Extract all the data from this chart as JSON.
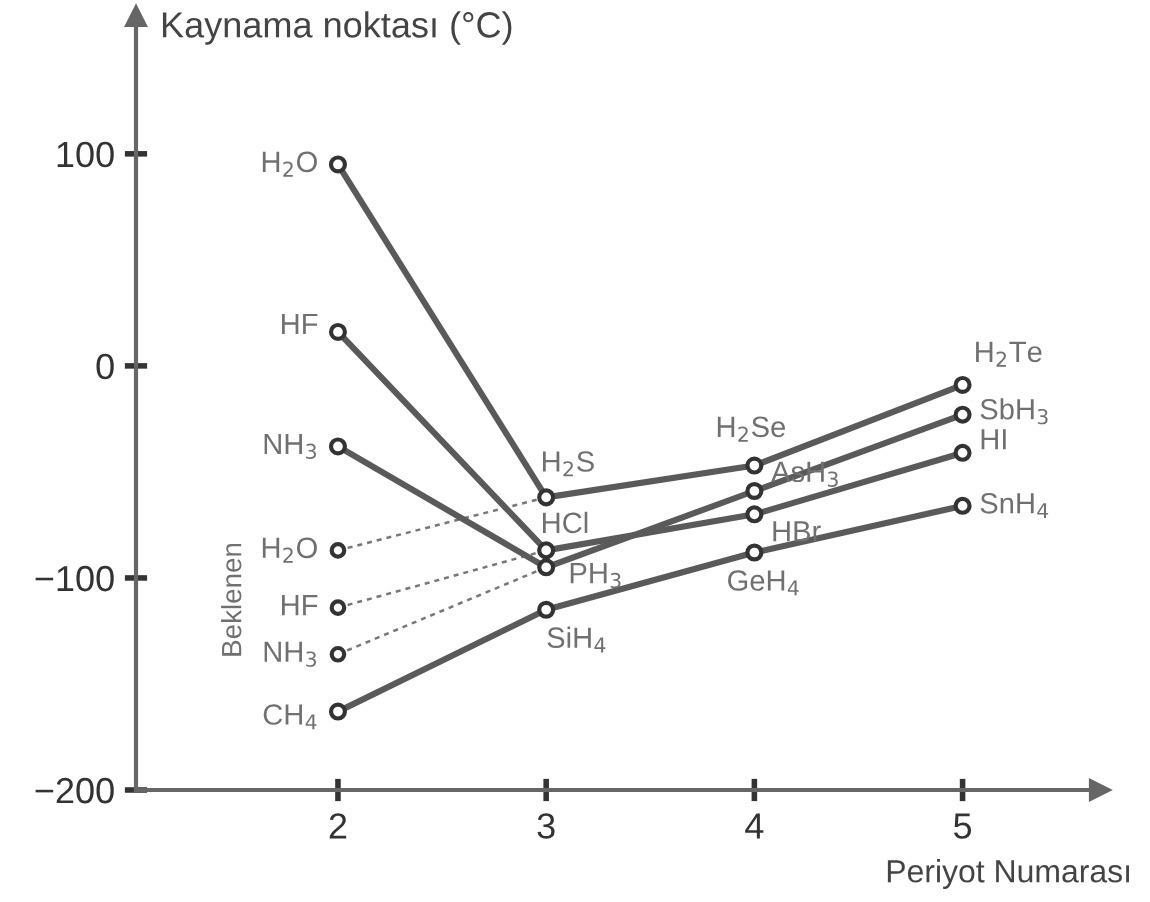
{
  "chart_data": {
    "type": "line",
    "ylabel": "Kaynama noktası (°C)",
    "xlabel": "Periyot Numarası",
    "x": [
      2,
      3,
      4,
      5
    ],
    "xlim": [
      1.03,
      5.66
    ],
    "ylim": [
      -200,
      165
    ],
    "xticks": [
      2,
      3,
      4,
      5
    ],
    "yticks": [
      100,
      0,
      {
        "value": -100,
        "label": "−100"
      },
      {
        "value": -200,
        "label": "−200"
      }
    ],
    "marker": "circle",
    "line_style": "solid",
    "grid": false,
    "legend": false,
    "series": [
      {
        "color": "#5a5a5a",
        "values": [
          95,
          -62,
          -47,
          -9
        ]
      },
      {
        "color": "#5a5a5a",
        "values": [
          16,
          -87,
          -70,
          -41
        ]
      },
      {
        "color": "#5a5a5a",
        "values": [
          -38,
          -95,
          -59,
          -23
        ]
      },
      {
        "color": "#5a5a5a",
        "values": [
          -163,
          -115,
          -88,
          -66
        ]
      },
      {
        "color": "#777777",
        "values": [
          -87,
          -62,
          null,
          null
        ],
        "line_style": "dotted"
      },
      {
        "color": "#777777",
        "values": [
          -114,
          -87,
          null,
          null
        ],
        "line_style": "dotted"
      },
      {
        "color": "#777777",
        "values": [
          -136,
          -95,
          null,
          null
        ],
        "line_style": "dotted"
      }
    ],
    "annotations": [
      {
        "text": "H$_{2}$O",
        "x": 2,
        "y": 95
      },
      {
        "text": "H$_{2}$S",
        "x": 3,
        "y": -62
      },
      {
        "text": "H$_{2}$Se",
        "x": 4,
        "y": -47
      },
      {
        "text": "H$_{2}$Te",
        "x": 5,
        "y": -9
      },
      {
        "text": "HF",
        "x": 2,
        "y": 16
      },
      {
        "text": "HCl",
        "x": 3,
        "y": -87
      },
      {
        "text": "HBr",
        "x": 4,
        "y": -70
      },
      {
        "text": "HI",
        "x": 5,
        "y": -41
      },
      {
        "text": "NH$_{3}$",
        "x": 2,
        "y": -38
      },
      {
        "text": "PH$_{3}$",
        "x": 3,
        "y": -95
      },
      {
        "text": "AsH$_{3}$",
        "x": 4,
        "y": -59
      },
      {
        "text": "SbH$_{3}$",
        "x": 5,
        "y": -23
      },
      {
        "text": "CH$_{4}$",
        "x": 2,
        "y": -163
      },
      {
        "text": "SiH$_{4}$",
        "x": 3,
        "y": -115
      },
      {
        "text": "GeH$_{4}$",
        "x": 4,
        "y": -88
      },
      {
        "text": "SnH$_{4}$",
        "x": 5,
        "y": -66
      },
      {
        "text": "H$_{2}$O",
        "x": 2,
        "y": -87
      },
      {
        "text": "HF",
        "x": 2,
        "y": -114
      },
      {
        "text": "NH$_{3}$",
        "x": 2,
        "y": -136
      },
      "Beklenen"
    ]
  }
}
